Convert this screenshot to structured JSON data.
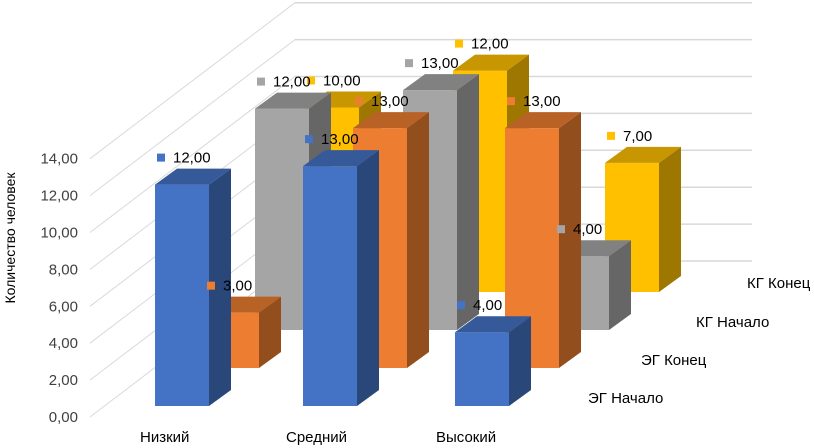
{
  "chart_data": {
    "type": "bar",
    "variant": "3d-column",
    "title": "",
    "xlabel": "",
    "ylabel": "Количество человек",
    "ylim": [
      0,
      14
    ],
    "yticks": [
      "0,00",
      "2,00",
      "4,00",
      "6,00",
      "8,00",
      "10,00",
      "12,00",
      "14,00"
    ],
    "categories": [
      "Низкий",
      "Средний",
      "Высокий"
    ],
    "grid": true,
    "series": [
      {
        "name": "ЭГ Начало",
        "color": "#4472C4",
        "values": [
          12,
          13,
          4
        ],
        "labels": [
          "12,00",
          "13,00",
          "4,00"
        ]
      },
      {
        "name": "ЭГ Конец",
        "color": "#ED7D31",
        "values": [
          3,
          13,
          13
        ],
        "labels": [
          "3,00",
          "13,00",
          "13,00"
        ]
      },
      {
        "name": "КГ Начало",
        "color": "#A5A5A5",
        "values": [
          12,
          13,
          4
        ],
        "labels": [
          "12,00",
          "13,00",
          "4,00"
        ]
      },
      {
        "name": "КГ Конец",
        "color": "#FFC000",
        "values": [
          10,
          12,
          7
        ],
        "labels": [
          "10,00",
          "12,00",
          "7,00"
        ]
      }
    ]
  }
}
